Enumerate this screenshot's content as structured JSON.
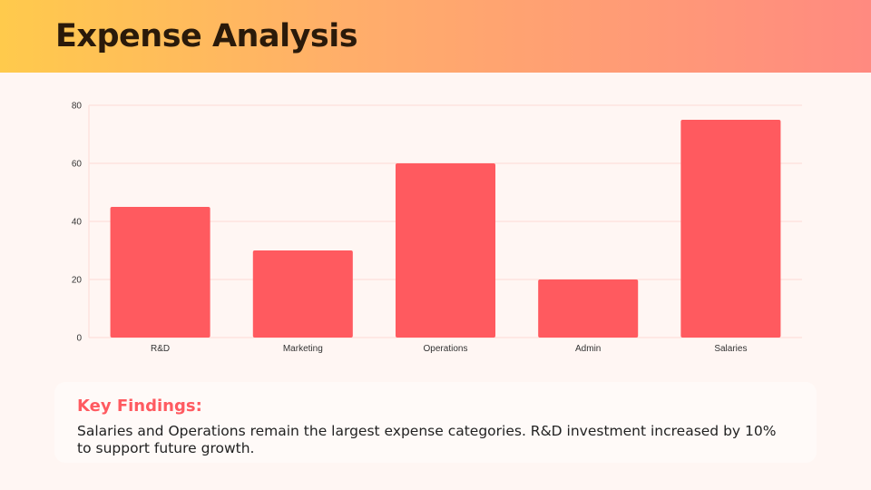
{
  "header": {
    "title": "Expense Analysis"
  },
  "chart_data": {
    "type": "bar",
    "categories": [
      "R&D",
      "Marketing",
      "Operations",
      "Admin",
      "Salaries"
    ],
    "values": [
      45,
      30,
      60,
      20,
      75
    ],
    "ylim": [
      0,
      80
    ],
    "yticks": [
      0,
      20,
      40,
      60,
      80
    ],
    "grid": true,
    "bar_color": "#ff5a5f"
  },
  "findings": {
    "heading": "Key Findings:",
    "text": "Salaries and Operations remain the largest expense categories. R&D investment increased by 10% to support future growth."
  }
}
